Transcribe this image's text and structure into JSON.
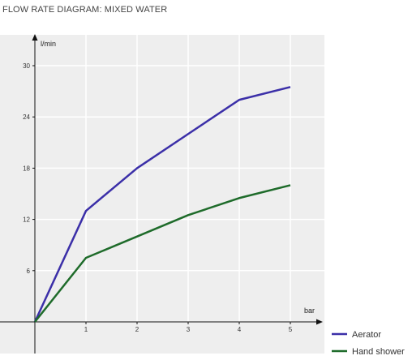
{
  "chart_data": {
    "type": "line",
    "title": "FLOW RATE DIAGRAM: MIXED WATER",
    "xlabel": "bar",
    "ylabel": "l/min",
    "x": [
      0,
      1,
      2,
      3,
      4,
      5
    ],
    "xticks": [
      1,
      2,
      3,
      4,
      5
    ],
    "yticks": [
      6,
      12,
      18,
      24,
      30
    ],
    "xlim": [
      0,
      5
    ],
    "ylim": [
      0,
      30
    ],
    "grid": true,
    "legend": "bottom-right",
    "series": [
      {
        "name": "Aerator",
        "color": "#3b2fa8",
        "values": [
          0,
          13,
          18,
          22,
          26,
          27.5
        ]
      },
      {
        "name": "Hand shower",
        "color": "#1e6b2a",
        "values": [
          0,
          7.5,
          10,
          12.5,
          14.5,
          16
        ]
      }
    ]
  }
}
